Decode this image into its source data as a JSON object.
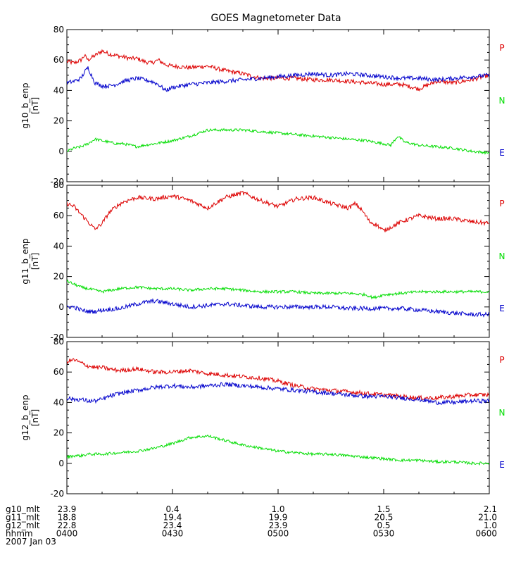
{
  "chart_data": {
    "type": "line",
    "title": "GOES Magnetometer Data",
    "colors": {
      "P": "#dd0000",
      "N": "#00dd00",
      "E": "#0000cc",
      "axis": "#000000",
      "background": "#ffffff"
    },
    "panels": [
      {
        "ylabel": "g10_b_enp",
        "yunits": "[nT]",
        "ylim": [
          -20,
          80
        ],
        "yticks": [
          "-20",
          "0",
          "20",
          "40",
          "60",
          "80"
        ],
        "yticks_values": [
          -20,
          0,
          20,
          40,
          60,
          80
        ],
        "legend": [
          "P",
          "N",
          "E"
        ],
        "series": [
          {
            "name": "P",
            "x": [
              0,
              2,
              4,
              5,
              6,
              8,
              10,
              12,
              14,
              16,
              18,
              20,
              22,
              24,
              26,
              28,
              30,
              35,
              40,
              45,
              50,
              55,
              60,
              65,
              70,
              75,
              80,
              85,
              90,
              95,
              100,
              105,
              110,
              115,
              120
            ],
            "values": [
              59,
              58,
              60,
              63,
              60,
              63,
              66,
              64,
              63,
              62,
              61,
              61,
              59,
              58,
              60,
              57,
              56,
              55,
              56,
              53,
              51,
              48,
              48,
              48,
              47,
              47,
              46,
              45,
              44,
              44,
              41,
              46,
              45,
              47,
              50
            ]
          },
          {
            "name": "N",
            "x": [
              0,
              2,
              4,
              6,
              8,
              10,
              12,
              14,
              16,
              18,
              20,
              22,
              25,
              30,
              35,
              40,
              45,
              50,
              55,
              60,
              65,
              70,
              75,
              80,
              85,
              90,
              92,
              94,
              96,
              100,
              105,
              110,
              115,
              120
            ],
            "values": [
              0,
              2,
              3,
              5,
              8,
              7,
              6,
              5,
              5,
              4,
              3,
              4,
              5,
              7,
              10,
              14,
              14,
              14,
              13,
              12,
              11,
              10,
              9,
              8,
              7,
              5,
              4,
              10,
              6,
              4,
              3,
              2,
              0,
              -1
            ]
          },
          {
            "name": "E",
            "x": [
              0,
              2,
              4,
              5,
              6,
              8,
              10,
              12,
              14,
              16,
              18,
              20,
              22,
              24,
              26,
              28,
              30,
              35,
              40,
              45,
              50,
              55,
              60,
              65,
              70,
              75,
              80,
              85,
              90,
              95,
              100,
              105,
              110,
              115,
              120
            ],
            "values": [
              45,
              46,
              48,
              52,
              55,
              45,
              43,
              43,
              44,
              46,
              47,
              48,
              47,
              46,
              44,
              40,
              42,
              44,
              45,
              46,
              47,
              48,
              49,
              50,
              51,
              50,
              51,
              50,
              49,
              48,
              48,
              47,
              48,
              49,
              50
            ]
          }
        ]
      },
      {
        "ylabel": "g11_b_enp",
        "yunits": "[nT]",
        "ylim": [
          -20,
          80
        ],
        "yticks": [
          "-20",
          "0",
          "20",
          "40",
          "60",
          "80"
        ],
        "yticks_values": [
          -20,
          0,
          20,
          40,
          60,
          80
        ],
        "legend": [
          "P",
          "N",
          "E"
        ],
        "series": [
          {
            "name": "P",
            "x": [
              0,
              2,
              4,
              6,
              8,
              10,
              12,
              14,
              16,
              20,
              25,
              30,
              35,
              40,
              45,
              50,
              55,
              60,
              65,
              70,
              75,
              80,
              82,
              84,
              86,
              88,
              90,
              95,
              100,
              105,
              110,
              115,
              120
            ],
            "values": [
              68,
              66,
              61,
              56,
              51,
              55,
              62,
              66,
              69,
              72,
              71,
              73,
              70,
              65,
              72,
              75,
              70,
              66,
              71,
              72,
              68,
              65,
              68,
              63,
              56,
              54,
              50,
              56,
              60,
              58,
              58,
              56,
              55
            ]
          },
          {
            "name": "N",
            "x": [
              0,
              2,
              4,
              6,
              8,
              10,
              15,
              20,
              25,
              30,
              35,
              40,
              45,
              50,
              55,
              60,
              65,
              70,
              75,
              80,
              85,
              87,
              90,
              95,
              100,
              105,
              110,
              115,
              120
            ],
            "values": [
              17,
              15,
              13,
              12,
              11,
              10,
              12,
              13,
              12,
              12,
              11,
              12,
              12,
              11,
              10,
              10,
              10,
              9,
              9,
              9,
              8,
              6,
              8,
              9,
              10,
              10,
              10,
              10,
              10
            ]
          },
          {
            "name": "E",
            "x": [
              0,
              2,
              4,
              6,
              8,
              10,
              15,
              20,
              22,
              25,
              30,
              35,
              40,
              45,
              50,
              55,
              60,
              65,
              70,
              75,
              80,
              85,
              90,
              95,
              100,
              105,
              110,
              115,
              120
            ],
            "values": [
              0,
              0,
              -2,
              -3,
              -3,
              -2,
              -1,
              2,
              3,
              4,
              2,
              0,
              1,
              2,
              1,
              0,
              0,
              0,
              0,
              0,
              -1,
              -1,
              -1,
              -1,
              -2,
              -3,
              -4,
              -5,
              -5
            ]
          }
        ]
      },
      {
        "ylabel": "g12_b_enp",
        "yunits": "[nT]",
        "ylim": [
          -20,
          80
        ],
        "yticks": [
          "-20",
          "0",
          "20",
          "40",
          "60",
          "80"
        ],
        "yticks_values": [
          -20,
          0,
          20,
          40,
          60,
          80
        ],
        "legend": [
          "P",
          "N",
          "E"
        ],
        "series": [
          {
            "name": "P",
            "x": [
              0,
              2,
              4,
              6,
              8,
              10,
              12,
              15,
              20,
              25,
              30,
              35,
              40,
              45,
              50,
              55,
              60,
              65,
              70,
              75,
              80,
              85,
              90,
              95,
              100,
              105,
              110,
              115,
              120
            ],
            "values": [
              67,
              68,
              66,
              64,
              63,
              63,
              62,
              61,
              62,
              60,
              60,
              61,
              59,
              58,
              57,
              56,
              54,
              51,
              49,
              48,
              47,
              46,
              45,
              44,
              43,
              43,
              44,
              45,
              45
            ]
          },
          {
            "name": "N",
            "x": [
              0,
              2,
              4,
              6,
              8,
              10,
              15,
              20,
              25,
              30,
              35,
              40,
              45,
              50,
              55,
              60,
              65,
              70,
              75,
              80,
              85,
              90,
              95,
              100,
              105,
              110,
              115,
              120
            ],
            "values": [
              4,
              5,
              5,
              6,
              6,
              6,
              7,
              8,
              10,
              13,
              17,
              18,
              15,
              12,
              10,
              8,
              7,
              6,
              6,
              5,
              4,
              3,
              2,
              2,
              1,
              1,
              0,
              0
            ]
          },
          {
            "name": "E",
            "x": [
              0,
              2,
              4,
              6,
              8,
              10,
              12,
              15,
              20,
              25,
              30,
              35,
              40,
              45,
              50,
              55,
              60,
              65,
              70,
              75,
              80,
              85,
              90,
              95,
              100,
              105,
              110,
              115,
              120
            ],
            "values": [
              43,
              42,
              42,
              41,
              41,
              42,
              44,
              46,
              48,
              50,
              51,
              50,
              51,
              52,
              51,
              50,
              49,
              48,
              47,
              46,
              45,
              44,
              44,
              43,
              42,
              40,
              40,
              41,
              41
            ]
          }
        ]
      }
    ],
    "x_axis": {
      "xlim": [
        0,
        120
      ],
      "tick_positions": [
        0,
        30,
        60,
        90,
        120
      ],
      "rows": [
        {
          "label": "g10_mlt",
          "values": [
            "23.9",
            "0.4",
            "1.0",
            "1.5",
            "2.1"
          ]
        },
        {
          "label": "g11_mlt",
          "values": [
            "18.8",
            "19.4",
            "19.9",
            "20.5",
            "21.0"
          ]
        },
        {
          "label": "g12_mlt",
          "values": [
            "22.8",
            "23.4",
            "23.9",
            "0.5",
            "1.0"
          ]
        },
        {
          "label": "hhmm",
          "values": [
            "0400",
            "0430",
            "0500",
            "0530",
            "0600"
          ]
        }
      ],
      "date": "2007 Jan 03"
    }
  }
}
